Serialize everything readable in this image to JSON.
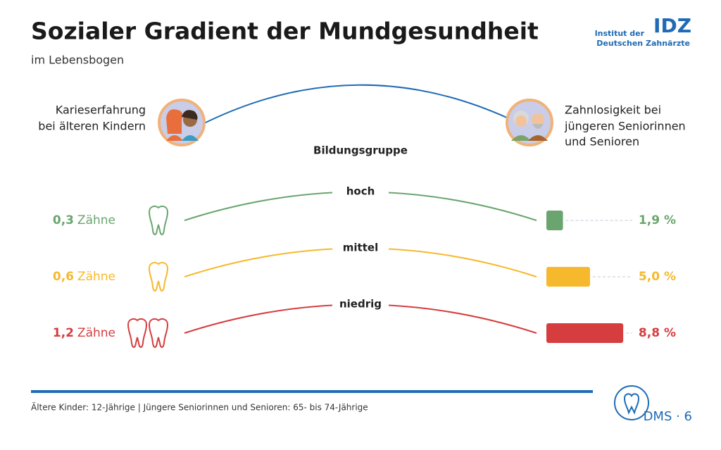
{
  "title": "Sozialer Gradient der Mundgesundheit",
  "subtitle": "im Lebensbogen",
  "left_label": [
    "Karieserfahrung",
    "bei älteren Kindern"
  ],
  "right_label": [
    "Zahnlosigkeit bei",
    "jüngeren Seniorinnen",
    "und Senioren"
  ],
  "group_heading": "Bildungsgruppe",
  "logo": {
    "lines": [
      "Institut der",
      "Deutschen Zahnärzte"
    ],
    "mark": "IDZ"
  },
  "badge": "DMS · 6",
  "footnote": "Ältere Kinder: 12-Jährige | Jüngere Seniorinnen und Senioren: 65- bis 74-Jährige",
  "chart_data": {
    "type": "gradient",
    "categories": [
      "hoch",
      "mittel",
      "niedrig"
    ],
    "colors": [
      "#6aa56f",
      "#f6b92e",
      "#d63d3f"
    ],
    "left": {
      "values": [
        0.3,
        0.6,
        1.2
      ],
      "value_labels": [
        "0,3",
        "0,6",
        "1,2"
      ],
      "unit": "Zähne"
    },
    "right": {
      "values": [
        1.9,
        5.0,
        8.8
      ],
      "value_labels": [
        "1,9 %",
        "5,0 %",
        "8,8 %"
      ]
    }
  }
}
